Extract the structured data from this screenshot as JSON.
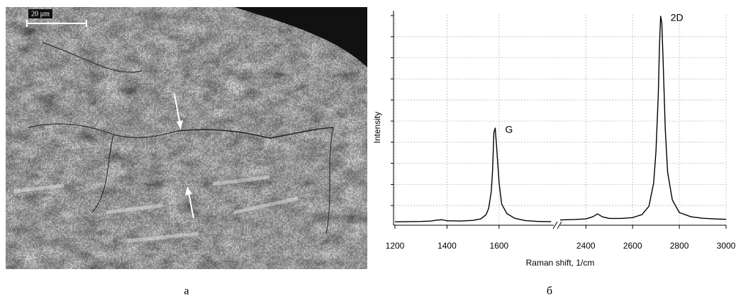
{
  "figure": {
    "panel_a_label": "а",
    "panel_b_label": "б",
    "scale_bar": "20 µm"
  },
  "chart_data": {
    "type": "line",
    "x_label": "Raman shift, 1/cm",
    "y_label": "Intensity",
    "color": "#000000",
    "grid": true,
    "xlim": [
      [
        1200,
        1810
      ],
      [
        2290,
        3000
      ]
    ],
    "ylim": [
      0,
      100
    ],
    "xticks": [
      1200,
      1400,
      1600,
      2400,
      2600,
      2800,
      3000
    ],
    "x": [
      1200,
      1250,
      1300,
      1340,
      1360,
      1380,
      1400,
      1450,
      1500,
      1530,
      1550,
      1560,
      1570,
      1575,
      1580,
      1585,
      1590,
      1600,
      1610,
      1630,
      1660,
      1700,
      1750,
      1800,
      2000,
      2290,
      2350,
      2400,
      2430,
      2450,
      2470,
      2500,
      2550,
      2600,
      2640,
      2670,
      2690,
      2700,
      2710,
      2715,
      2720,
      2725,
      2730,
      2740,
      2750,
      2770,
      2800,
      2850,
      2900,
      2950,
      3000
    ],
    "values": [
      1.6,
      1.7,
      1.8,
      2.0,
      2.4,
      2.6,
      2.1,
      2.0,
      2.3,
      3.0,
      5.0,
      8,
      16,
      26,
      44,
      46,
      38,
      20,
      10,
      5.5,
      3.3,
      2.2,
      1.8,
      1.7,
      null,
      2.5,
      2.7,
      3.0,
      4.0,
      5.4,
      4.0,
      3.2,
      3.2,
      3.6,
      5,
      9,
      20,
      35,
      62,
      85,
      99,
      96,
      80,
      45,
      25,
      12,
      6,
      4,
      3.3,
      3,
      2.8
    ],
    "annotations": [
      {
        "text": "G",
        "x": 1585,
        "y": 46
      },
      {
        "text": "2D",
        "x": 2720,
        "y": 99
      }
    ]
  }
}
